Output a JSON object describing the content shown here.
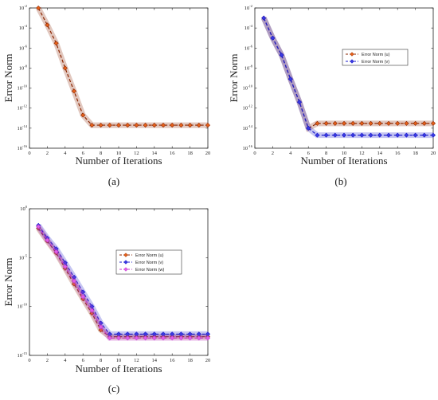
{
  "chart_data": [
    {
      "type": "line",
      "panel_label": "(a)",
      "xlabel": "Number of Iterations",
      "ylabel": "Error Norm",
      "xlim": [
        0,
        20
      ],
      "xticks": [
        "0",
        "2",
        "4",
        "6",
        "8",
        "10",
        "12",
        "14",
        "16",
        "18",
        "20"
      ],
      "ylim": [
        1e-16,
        0.01
      ],
      "yscale": "log",
      "yticks": [
        {
          "base": "10",
          "exp": "-2"
        },
        {
          "base": "10",
          "exp": "-4"
        },
        {
          "base": "10",
          "exp": "-6"
        },
        {
          "base": "10",
          "exp": "-8"
        },
        {
          "base": "10",
          "exp": "-10"
        },
        {
          "base": "10",
          "exp": "-12"
        },
        {
          "base": "10",
          "exp": "-14"
        },
        {
          "base": "10",
          "exp": "-16"
        }
      ],
      "legend": null,
      "series": [
        {
          "color": "#8B2500",
          "marker_color": "#E8621A",
          "x": [
            1,
            2,
            3,
            4,
            5,
            6,
            7,
            8,
            9,
            10,
            11,
            12,
            13,
            14,
            15,
            16,
            17,
            18,
            19,
            20
          ],
          "y": [
            0.01,
            0.0002,
            3e-06,
            1e-08,
            5e-11,
            2e-13,
            2e-14,
            2e-14,
            2e-14,
            2e-14,
            2e-14,
            2e-14,
            2e-14,
            2e-14,
            2e-14,
            2e-14,
            2e-14,
            2e-14,
            2e-14,
            2e-14
          ]
        }
      ]
    },
    {
      "type": "line",
      "panel_label": "(b)",
      "xlabel": "Number of Iterations",
      "ylabel": "Error Norm",
      "xlim": [
        0,
        20
      ],
      "xticks": [
        "0",
        "2",
        "4",
        "6",
        "8",
        "10",
        "12",
        "14",
        "16",
        "18",
        "20"
      ],
      "ylim": [
        1e-16,
        0.01
      ],
      "yscale": "log",
      "yticks": [
        {
          "base": "10",
          "exp": "-2"
        },
        {
          "base": "10",
          "exp": "-4"
        },
        {
          "base": "10",
          "exp": "-6"
        },
        {
          "base": "10",
          "exp": "-8"
        },
        {
          "base": "10",
          "exp": "-10"
        },
        {
          "base": "10",
          "exp": "-12"
        },
        {
          "base": "10",
          "exp": "-14"
        },
        {
          "base": "10",
          "exp": "-16"
        }
      ],
      "legend": "upper-right",
      "series": [
        {
          "name": "Error Norm (u)",
          "color": "#8B2500",
          "marker_color": "#E8621A",
          "x": [
            1,
            2,
            3,
            4,
            5,
            6,
            7,
            8,
            9,
            10,
            11,
            12,
            13,
            14,
            15,
            16,
            17,
            18,
            19,
            20
          ],
          "y": [
            0.001,
            1e-05,
            2e-07,
            8e-10,
            4e-12,
            1e-14,
            3e-14,
            3e-14,
            3e-14,
            3e-14,
            3e-14,
            3e-14,
            3e-14,
            3e-14,
            3e-14,
            3e-14,
            3e-14,
            3e-14,
            3e-14,
            3e-14
          ]
        },
        {
          "name": "Error Norm (v)",
          "color": "#1A1ACC",
          "marker_color": "#3A3AE0",
          "x": [
            1,
            2,
            3,
            4,
            5,
            6,
            7,
            8,
            9,
            10,
            11,
            12,
            13,
            14,
            15,
            16,
            17,
            18,
            19,
            20
          ],
          "y": [
            0.001,
            1e-05,
            2e-07,
            8e-10,
            4e-12,
            1e-14,
            2e-15,
            2e-15,
            2e-15,
            2e-15,
            2e-15,
            2e-15,
            2e-15,
            2e-15,
            2e-15,
            2e-15,
            2e-15,
            2e-15,
            2e-15,
            2e-15
          ]
        }
      ]
    },
    {
      "type": "line",
      "panel_label": "(c)",
      "xlabel": "Number of Iterations",
      "ylabel": "Error Norm",
      "xlim": [
        0,
        20
      ],
      "xticks": [
        "0",
        "2",
        "4",
        "6",
        "8",
        "10",
        "12",
        "14",
        "16",
        "18",
        "20"
      ],
      "ylim": [
        1e-15,
        1
      ],
      "yscale": "log",
      "yticks": [
        {
          "base": "10",
          "exp": "0"
        },
        {
          "base": "10",
          "exp": "-5"
        },
        {
          "base": "10",
          "exp": "-10"
        },
        {
          "base": "10",
          "exp": "-15"
        }
      ],
      "legend": "upper-right",
      "series": [
        {
          "name": "Error Norm (u)",
          "color": "#8B2500",
          "marker_color": "#E8621A",
          "x": [
            1,
            2,
            3,
            4,
            5,
            6,
            7,
            8,
            9,
            10,
            11,
            12,
            13,
            14,
            15,
            16,
            17,
            18,
            19,
            20
          ],
          "y": [
            0.01,
            0.0005,
            3e-05,
            8e-07,
            2e-08,
            6e-10,
            2e-11,
            4e-13,
            8e-14,
            8e-14,
            8e-14,
            8e-14,
            8e-14,
            8e-14,
            8e-14,
            8e-14,
            8e-14,
            8e-14,
            8e-14,
            8e-14
          ]
        },
        {
          "name": "Error Norm (v)",
          "color": "#1A1ACC",
          "marker_color": "#3A3AE0",
          "x": [
            1,
            2,
            3,
            4,
            5,
            6,
            7,
            8,
            9,
            10,
            11,
            12,
            13,
            14,
            15,
            16,
            17,
            18,
            19,
            20
          ],
          "y": [
            0.02,
            0.001,
            8e-05,
            3e-06,
            1e-07,
            3e-09,
            1e-10,
            2e-12,
            1.5e-13,
            1.5e-13,
            1.5e-13,
            1.5e-13,
            1.5e-13,
            1.5e-13,
            1.5e-13,
            1.5e-13,
            1.5e-13,
            1.5e-13,
            1.5e-13,
            1.5e-13
          ]
        },
        {
          "name": "Error Norm (w)",
          "color": "#C03CC8",
          "marker_color": "#E060E8",
          "x": [
            1,
            2,
            3,
            4,
            5,
            6,
            7,
            8,
            9,
            10,
            11,
            12,
            13,
            14,
            15,
            16,
            17,
            18,
            19,
            20
          ],
          "y": [
            0.015,
            0.0006,
            4e-05,
            1.2e-06,
            4e-08,
            1e-09,
            4e-11,
            8e-13,
            6e-14,
            6e-14,
            6e-14,
            6e-14,
            6e-14,
            6e-14,
            6e-14,
            6e-14,
            6e-14,
            6e-14,
            6e-14,
            6e-14
          ]
        }
      ]
    }
  ]
}
